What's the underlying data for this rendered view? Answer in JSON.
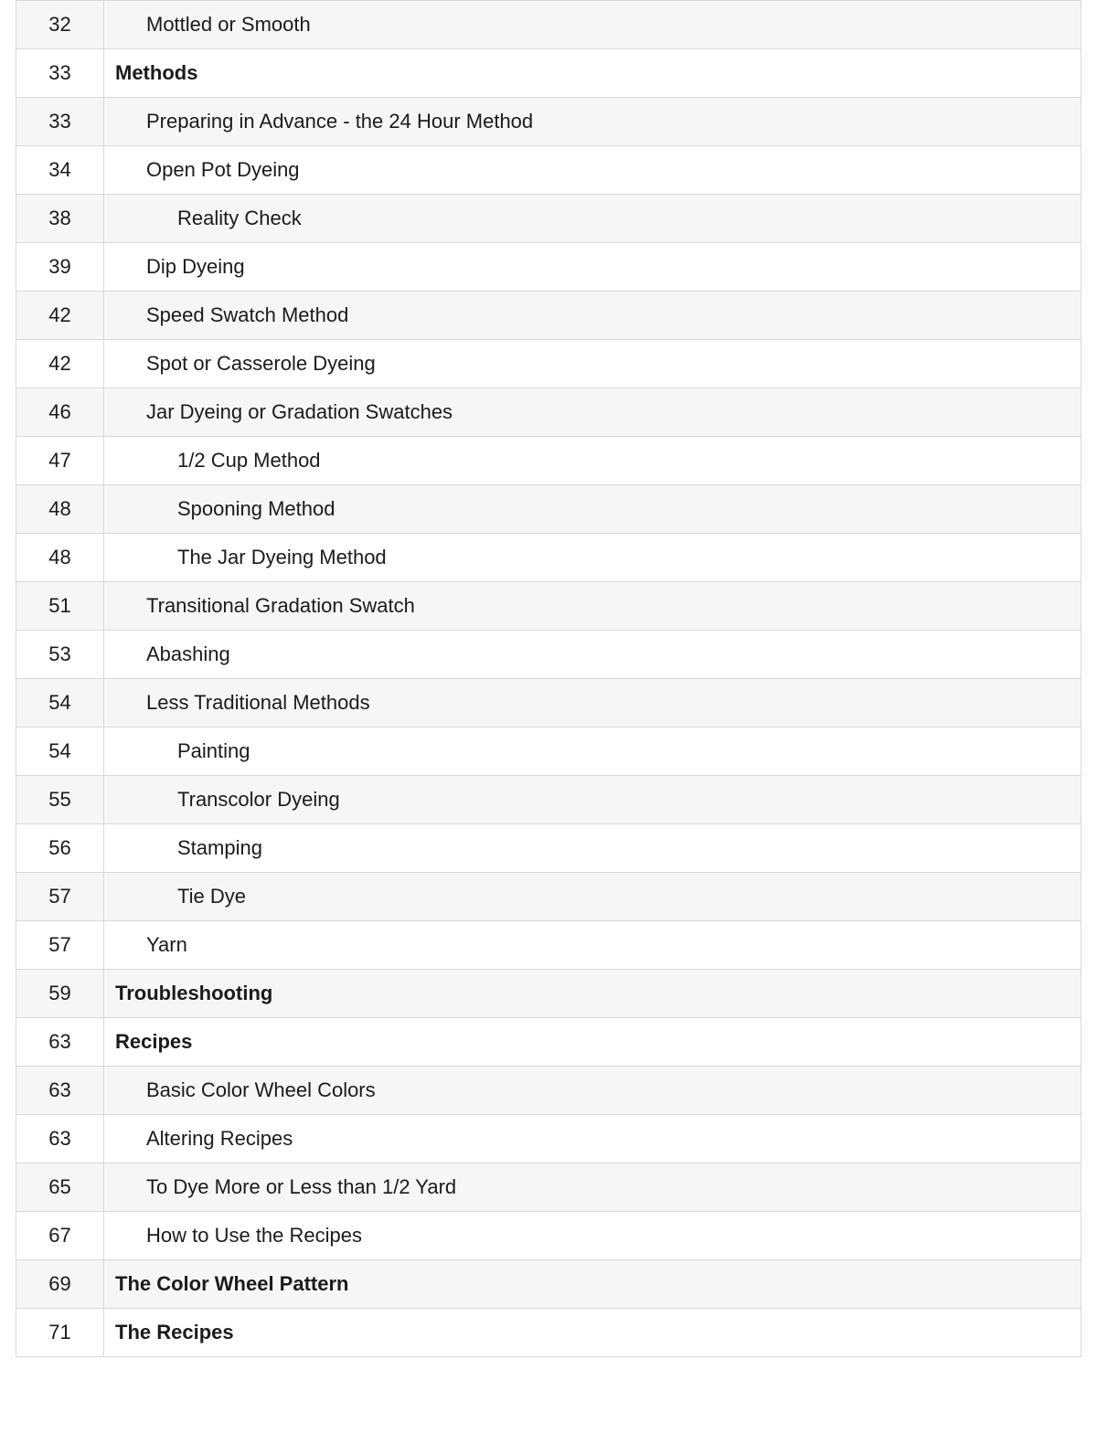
{
  "style": {
    "tableWidthPx": 1166,
    "rowHeightPx": 53,
    "pageColWidthPx": 96,
    "borderColor": "#d9d9d9",
    "altRowBg": "#f6f6f6",
    "rowBg": "#ffffff",
    "fontSizePx": 22,
    "textColor": "#1b1b1b",
    "indentStepPx": 34,
    "fontWeightBold": 700,
    "fontWeightNormal": 400
  },
  "toc": [
    {
      "page": "32",
      "title": "Mottled or Smooth",
      "indent": 1,
      "bold": false,
      "alt": true
    },
    {
      "page": "33",
      "title": "Methods",
      "indent": 0,
      "bold": true,
      "alt": false
    },
    {
      "page": "33",
      "title": "Preparing in Advance - the 24 Hour Method",
      "indent": 1,
      "bold": false,
      "alt": true
    },
    {
      "page": "34",
      "title": "Open Pot Dyeing",
      "indent": 1,
      "bold": false,
      "alt": false
    },
    {
      "page": "38",
      "title": "Reality Check",
      "indent": 2,
      "bold": false,
      "alt": true
    },
    {
      "page": "39",
      "title": "Dip Dyeing",
      "indent": 1,
      "bold": false,
      "alt": false
    },
    {
      "page": "42",
      "title": "Speed Swatch Method",
      "indent": 1,
      "bold": false,
      "alt": true
    },
    {
      "page": "42",
      "title": "Spot or Casserole Dyeing",
      "indent": 1,
      "bold": false,
      "alt": false
    },
    {
      "page": "46",
      "title": "Jar Dyeing or Gradation Swatches",
      "indent": 1,
      "bold": false,
      "alt": true
    },
    {
      "page": "47",
      "title": "1/2 Cup Method",
      "indent": 2,
      "bold": false,
      "alt": false
    },
    {
      "page": "48",
      "title": "Spooning Method",
      "indent": 2,
      "bold": false,
      "alt": true
    },
    {
      "page": "48",
      "title": "The Jar Dyeing Method",
      "indent": 2,
      "bold": false,
      "alt": false
    },
    {
      "page": "51",
      "title": "Transitional Gradation Swatch",
      "indent": 1,
      "bold": false,
      "alt": true
    },
    {
      "page": "53",
      "title": "Abashing",
      "indent": 1,
      "bold": false,
      "alt": false
    },
    {
      "page": "54",
      "title": "Less Traditional Methods",
      "indent": 1,
      "bold": false,
      "alt": true
    },
    {
      "page": "54",
      "title": "Painting",
      "indent": 2,
      "bold": false,
      "alt": false
    },
    {
      "page": "55",
      "title": "Transcolor Dyeing",
      "indent": 2,
      "bold": false,
      "alt": true
    },
    {
      "page": "56",
      "title": "Stamping",
      "indent": 2,
      "bold": false,
      "alt": false
    },
    {
      "page": "57",
      "title": "Tie Dye",
      "indent": 2,
      "bold": false,
      "alt": true
    },
    {
      "page": "57",
      "title": "Yarn",
      "indent": 1,
      "bold": false,
      "alt": false
    },
    {
      "page": "59",
      "title": "Troubleshooting",
      "indent": 0,
      "bold": true,
      "alt": true
    },
    {
      "page": "63",
      "title": "Recipes",
      "indent": 0,
      "bold": true,
      "alt": false
    },
    {
      "page": "63",
      "title": "Basic Color Wheel Colors",
      "indent": 1,
      "bold": false,
      "alt": true
    },
    {
      "page": "63",
      "title": "Altering Recipes",
      "indent": 1,
      "bold": false,
      "alt": false
    },
    {
      "page": "65",
      "title": "To Dye More or Less than 1/2 Yard",
      "indent": 1,
      "bold": false,
      "alt": true
    },
    {
      "page": "67",
      "title": "How to Use the Recipes",
      "indent": 1,
      "bold": false,
      "alt": false
    },
    {
      "page": "69",
      "title": "The Color Wheel Pattern",
      "indent": 0,
      "bold": true,
      "alt": true
    },
    {
      "page": "71",
      "title": "The Recipes",
      "indent": 0,
      "bold": true,
      "alt": false
    }
  ]
}
